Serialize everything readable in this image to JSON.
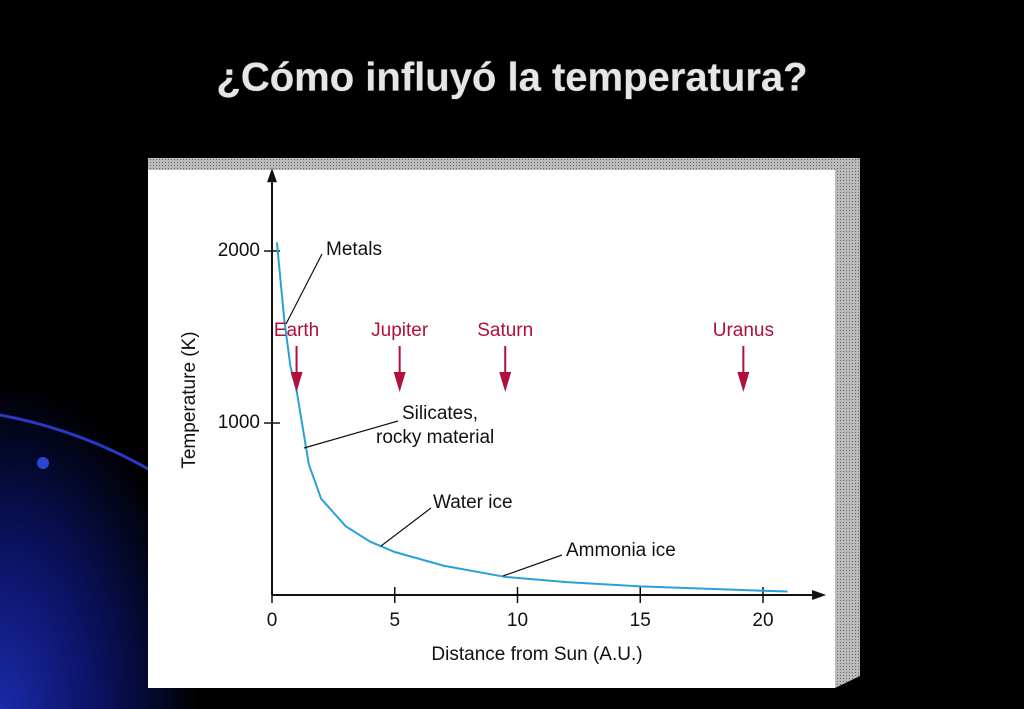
{
  "chart_data": {
    "type": "line",
    "title": "¿Cómo influyó la temperatura?",
    "x_label": "Distance from Sun (A.U.)",
    "y_label": "Temperature (K)",
    "x": [
      0.2,
      0.5,
      0.75,
      1,
      1.5,
      2,
      3,
      4,
      5,
      7,
      9.5,
      12,
      15,
      20,
      21
    ],
    "values": [
      2050,
      1600,
      1330,
      1190,
      760,
      560,
      400,
      310,
      250,
      170,
      105,
      75,
      50,
      25,
      20
    ],
    "color": "#2aa0d8",
    "xlim": [
      0,
      22
    ],
    "ylim": [
      0,
      2400
    ],
    "xticks": [
      0,
      5,
      10,
      15,
      20
    ],
    "yticks": [
      1000,
      2000
    ],
    "planets": [
      {
        "name": "Earth",
        "x": 1
      },
      {
        "name": "Jupiter",
        "x": 5.2
      },
      {
        "name": "Saturn",
        "x": 9.5
      },
      {
        "name": "Uranus",
        "x": 19.2
      }
    ],
    "planet_color": "#b0103a",
    "annotations": [
      {
        "lines": [
          "Metals"
        ]
      },
      {
        "lines": [
          "Silicates,",
          "rocky material"
        ]
      },
      {
        "lines": [
          "Water ice"
        ]
      },
      {
        "lines": [
          "Ammonia ice"
        ]
      }
    ]
  }
}
